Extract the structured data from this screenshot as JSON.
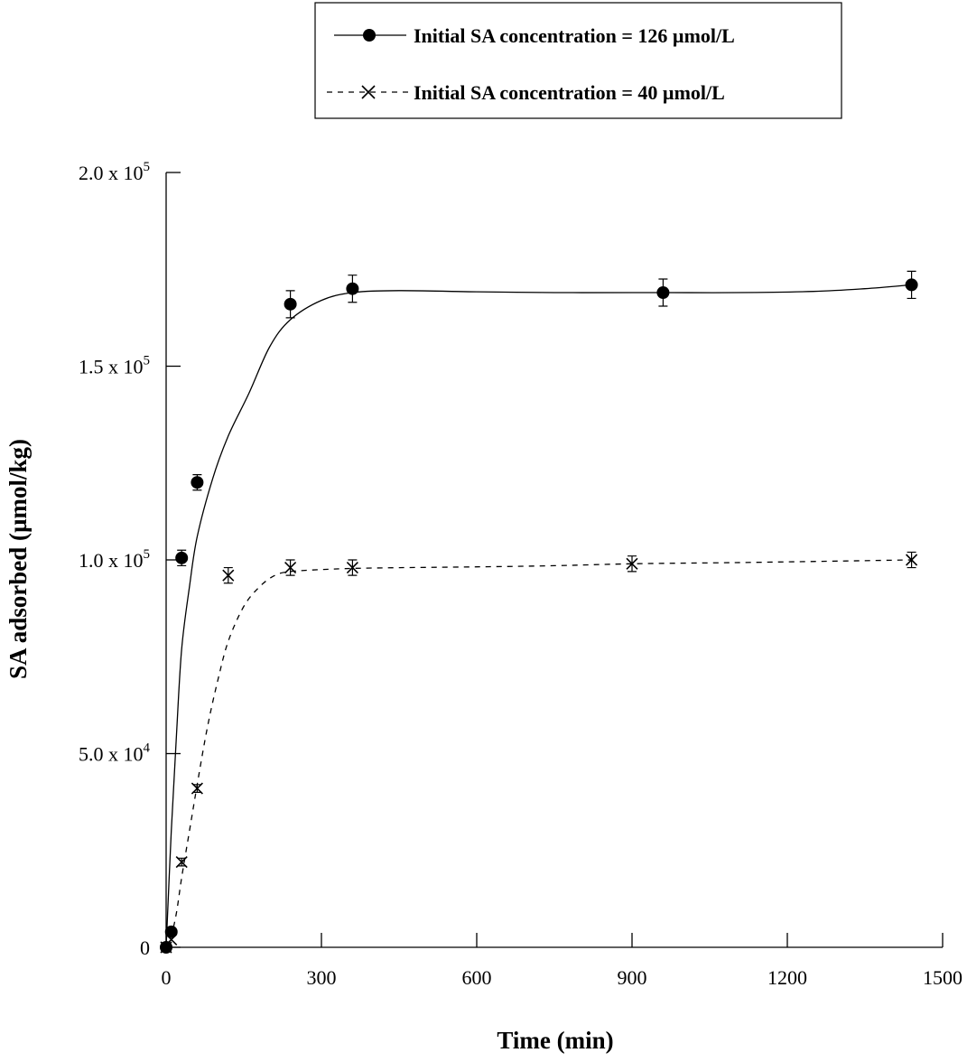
{
  "chart_data": {
    "type": "scatter",
    "xlabel": "Time (min)",
    "ylabel": "SA adsorbed (µmol/kg)",
    "xlim": [
      0,
      1500
    ],
    "ylim": [
      0,
      200000
    ],
    "x_ticks": [
      0,
      300,
      600,
      900,
      1200,
      1500
    ],
    "x_tick_labels": [
      "0",
      "300",
      "600",
      "900",
      "1200",
      "1500"
    ],
    "y_ticks": [
      0,
      50000,
      100000,
      150000,
      200000
    ],
    "y_tick_labels": [
      {
        "mantissa": "0",
        "exponent": ""
      },
      {
        "mantissa": "5.0 x 10",
        "exponent": "4"
      },
      {
        "mantissa": "1.0 x 10",
        "exponent": "5"
      },
      {
        "mantissa": "1.5 x 10",
        "exponent": "5"
      },
      {
        "mantissa": "2.0 x 10",
        "exponent": "5"
      }
    ],
    "grid": false,
    "legend_position": "top-right",
    "series": [
      {
        "name": "Initial SA concentration = 126 µmol/L",
        "marker": "filled-circle",
        "line": "solid",
        "x": [
          0,
          10,
          30,
          60,
          240,
          360,
          960,
          1440
        ],
        "y": [
          0,
          4000,
          100500,
          120000,
          166000,
          170000,
          169000,
          171000
        ],
        "error": [
          0,
          0,
          2000,
          2000,
          3500,
          3500,
          3500,
          3500
        ],
        "fit_x": [
          0,
          10,
          20,
          30,
          45,
          60,
          90,
          120,
          160,
          200,
          240,
          300,
          360,
          450,
          600,
          750,
          900,
          960,
          1100,
          1250,
          1350,
          1440
        ],
        "fit_y": [
          0,
          30000,
          55000,
          77000,
          93000,
          106000,
          121000,
          132000,
          143000,
          155000,
          162000,
          167000,
          169000,
          169500,
          169200,
          169000,
          169000,
          169000,
          169000,
          169300,
          170000,
          171000
        ]
      },
      {
        "name": "Initial SA concentration = 40 µmol/L",
        "marker": "x",
        "line": "dashed",
        "x": [
          0,
          10,
          30,
          60,
          120,
          240,
          360,
          900,
          1440
        ],
        "y": [
          0,
          2000,
          22000,
          41000,
          96000,
          98000,
          98000,
          99000,
          100000
        ],
        "error": [
          0,
          0,
          1000,
          1000,
          2000,
          2000,
          2000,
          2000,
          2000
        ],
        "fit_x": [
          0,
          10,
          20,
          30,
          45,
          60,
          80,
          100,
          120,
          150,
          180,
          210,
          240,
          300,
          360,
          450,
          600,
          750,
          900,
          1100,
          1300,
          1440
        ],
        "fit_y": [
          0,
          3000,
          9000,
          18000,
          30000,
          42000,
          57000,
          69000,
          79000,
          88000,
          93000,
          96000,
          97000,
          97500,
          97800,
          98000,
          98200,
          98500,
          99000,
          99300,
          99700,
          100000
        ]
      }
    ]
  }
}
